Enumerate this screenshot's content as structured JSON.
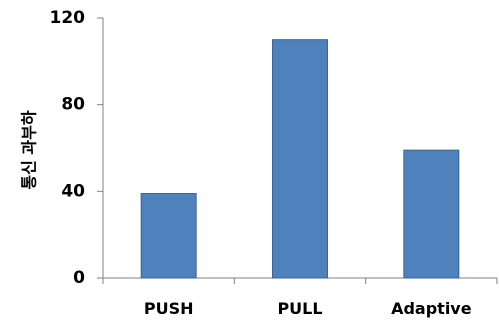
{
  "chart_data": {
    "type": "bar",
    "title": "",
    "xlabel": "",
    "ylabel": "통신 과부하",
    "categories": [
      "PUSH",
      "PULL",
      "Adaptive"
    ],
    "values": [
      39,
      110,
      59
    ],
    "ylim": [
      0,
      120
    ],
    "yticks": [
      0,
      40,
      80,
      120
    ],
    "ytick_labels": [
      "0",
      "40",
      "80",
      "120"
    ],
    "grid": false,
    "legend": "none",
    "bar_color": "#4F81BD",
    "bar_edge_color": "#3A6596"
  }
}
